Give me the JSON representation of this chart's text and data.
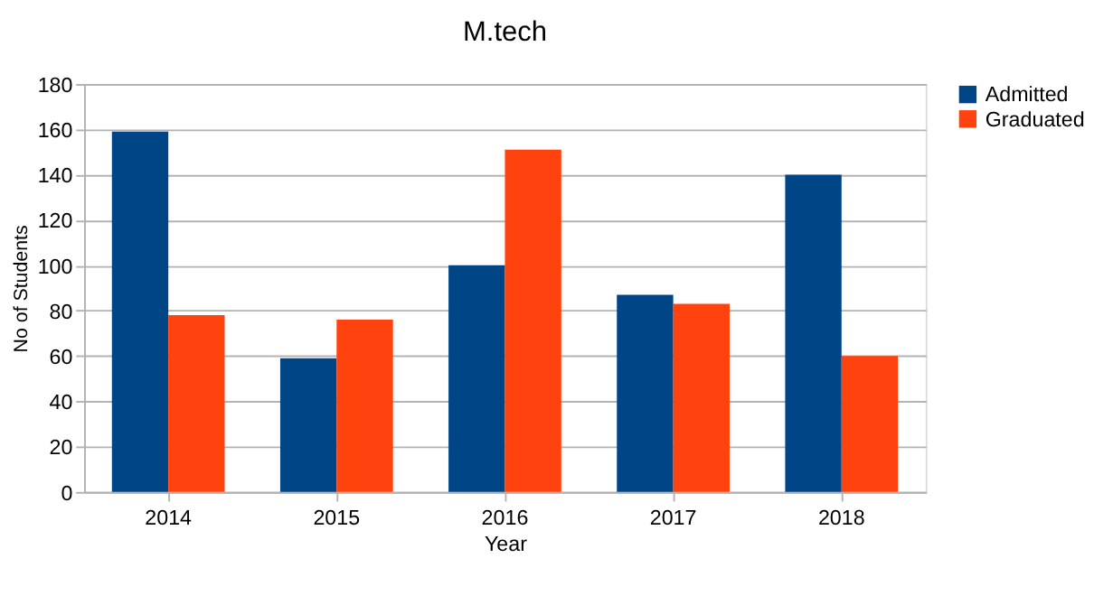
{
  "chart_data": {
    "type": "bar",
    "title": "M.tech",
    "xlabel": "Year",
    "ylabel": "No of Students",
    "categories": [
      "2014",
      "2015",
      "2016",
      "2017",
      "2018"
    ],
    "series": [
      {
        "name": "Admitted",
        "color": "#004586",
        "values": [
          159,
          59,
          100,
          87,
          140
        ]
      },
      {
        "name": "Graduated",
        "color": "#ff420e",
        "values": [
          78,
          76,
          151,
          83,
          60
        ]
      }
    ],
    "ylim": [
      0,
      180
    ],
    "yticks": [
      0,
      20,
      40,
      60,
      80,
      100,
      120,
      140,
      160,
      180
    ],
    "grid": "y",
    "legend": "right"
  }
}
